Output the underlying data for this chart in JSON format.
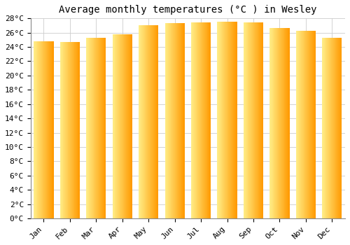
{
  "title": "Average monthly temperatures (°C ) in Wesley",
  "months": [
    "Jan",
    "Feb",
    "Mar",
    "Apr",
    "May",
    "Jun",
    "Jul",
    "Aug",
    "Sep",
    "Oct",
    "Nov",
    "Dec"
  ],
  "temperatures": [
    24.8,
    24.7,
    25.3,
    25.8,
    27.0,
    27.3,
    27.4,
    27.5,
    27.4,
    26.7,
    26.3,
    25.3
  ],
  "ylim": [
    0,
    28
  ],
  "ytick_step": 2,
  "bar_color_left": "#FFEE88",
  "bar_color_right": "#FF9900",
  "bg_color": "#FFFFFF",
  "grid_color": "#CCCCCC",
  "title_fontsize": 10,
  "tick_fontsize": 8,
  "font_family": "monospace"
}
